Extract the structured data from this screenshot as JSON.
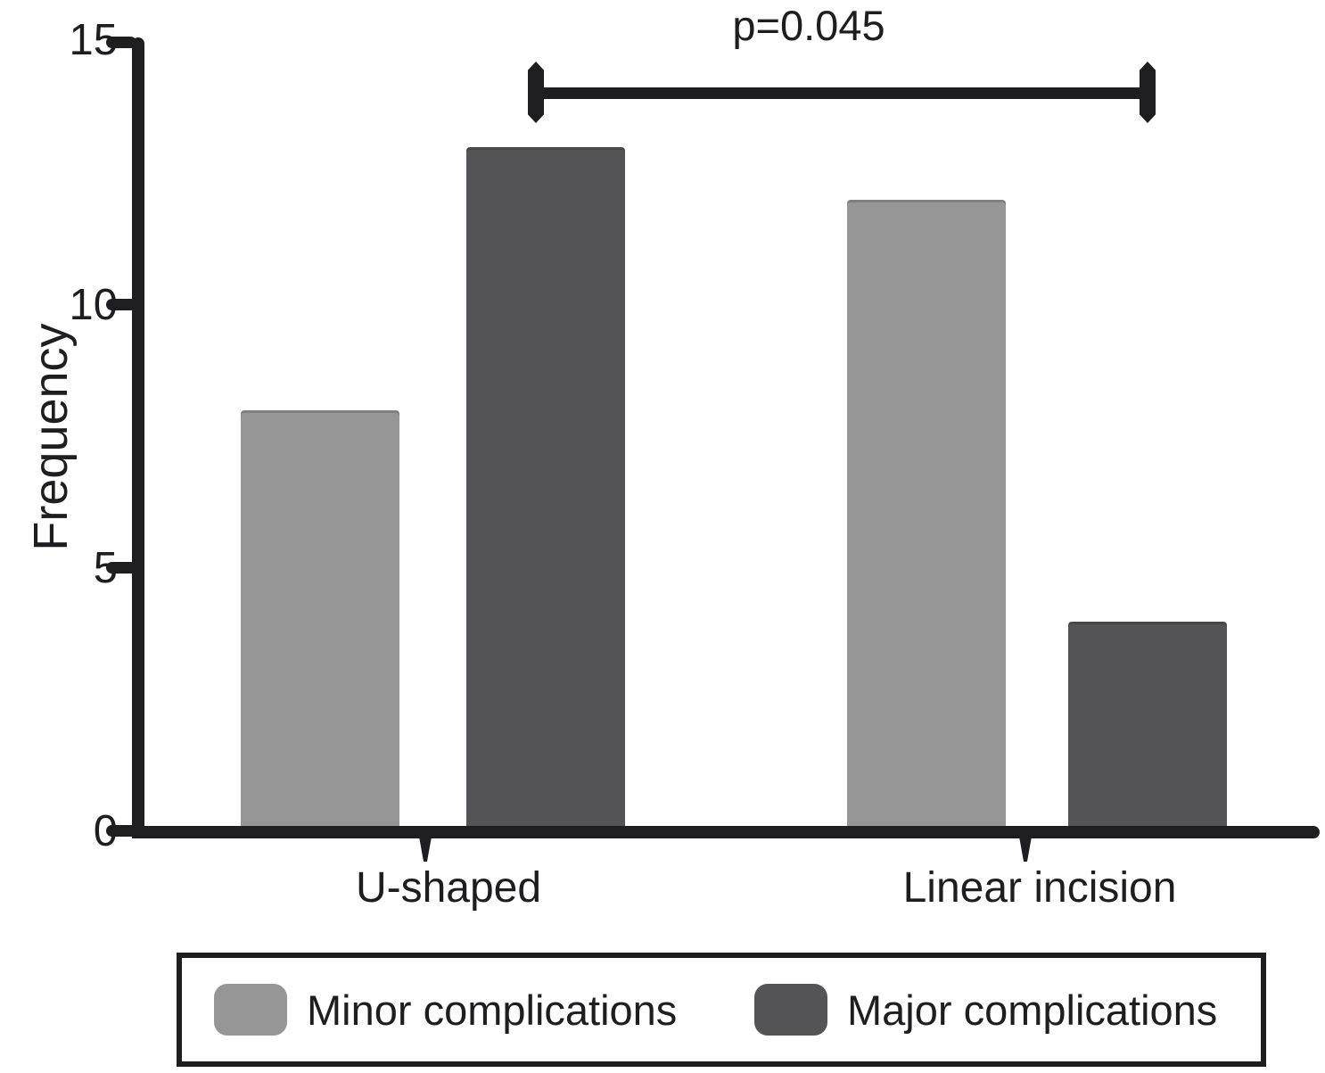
{
  "chart_data": {
    "type": "bar",
    "title": "",
    "xlabel": "",
    "ylabel": "Frequency",
    "categories": [
      "U-shaped",
      "Linear incision"
    ],
    "series": [
      {
        "name": "Minor complications",
        "color": "#969696",
        "values": [
          8,
          12
        ]
      },
      {
        "name": "Major complications",
        "color": "#545457",
        "values": [
          13,
          4
        ]
      }
    ],
    "ylim": [
      0,
      15
    ],
    "yticks": [
      0,
      5,
      10,
      15
    ],
    "ytick_labels": [
      "0",
      "5",
      "10",
      "15"
    ],
    "grid": false,
    "legend_position": "bottom",
    "significance": {
      "label": "p=0.045",
      "connects_bars": [
        "U-shaped Major complications",
        "Linear incision Major complications"
      ]
    }
  },
  "colors": {
    "ink": "#1e1e20",
    "background": "#ffffff"
  }
}
